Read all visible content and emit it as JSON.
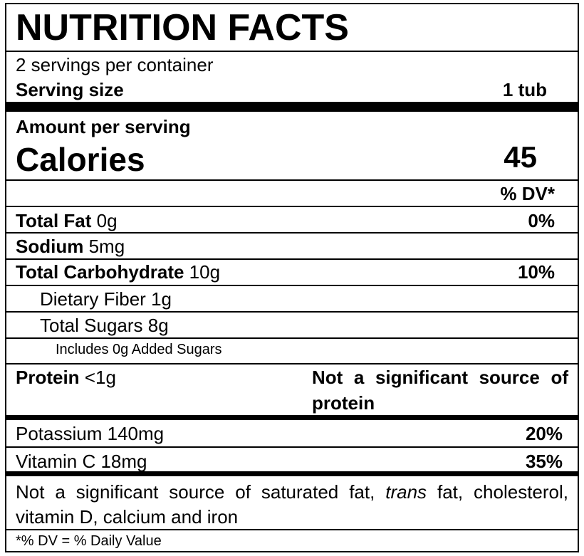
{
  "header": {
    "title": "NUTRITION FACTS"
  },
  "servings": {
    "per_container": "2 servings per container",
    "size_label": "Serving size",
    "size_value": "1 tub"
  },
  "calories": {
    "amount_label": "Amount per serving",
    "label": "Calories",
    "value": 45
  },
  "dv_header": "% DV*",
  "nutrients": [
    {
      "name": "Total Fat",
      "amount": "0g",
      "dv": "0%"
    },
    {
      "name": "Sodium",
      "amount": "5mg"
    },
    {
      "name": "Total Carbohydrate",
      "amount": "10g",
      "dv": "10%"
    },
    {
      "name": "Dietary Fiber",
      "amount": "1g"
    },
    {
      "name": "Total Sugars",
      "amount": "8g"
    },
    {
      "name": "Includes 0g Added Sugars"
    },
    {
      "name": "Protein",
      "amount": "<1g",
      "dv": "Not a significant source of protein"
    }
  ],
  "vitamins": [
    {
      "name": "Potassium",
      "amount": "140mg",
      "dv": "20%"
    },
    {
      "name": "Vitamin C",
      "amount": "18mg",
      "dv": "35%"
    }
  ],
  "footnote": {
    "parts": [
      "Not a significant source of saturated fat, ",
      "trans",
      " fat, cholesterol, vitamin D, calcium and iron"
    ]
  },
  "dv_note": "*% DV = % Daily Value"
}
